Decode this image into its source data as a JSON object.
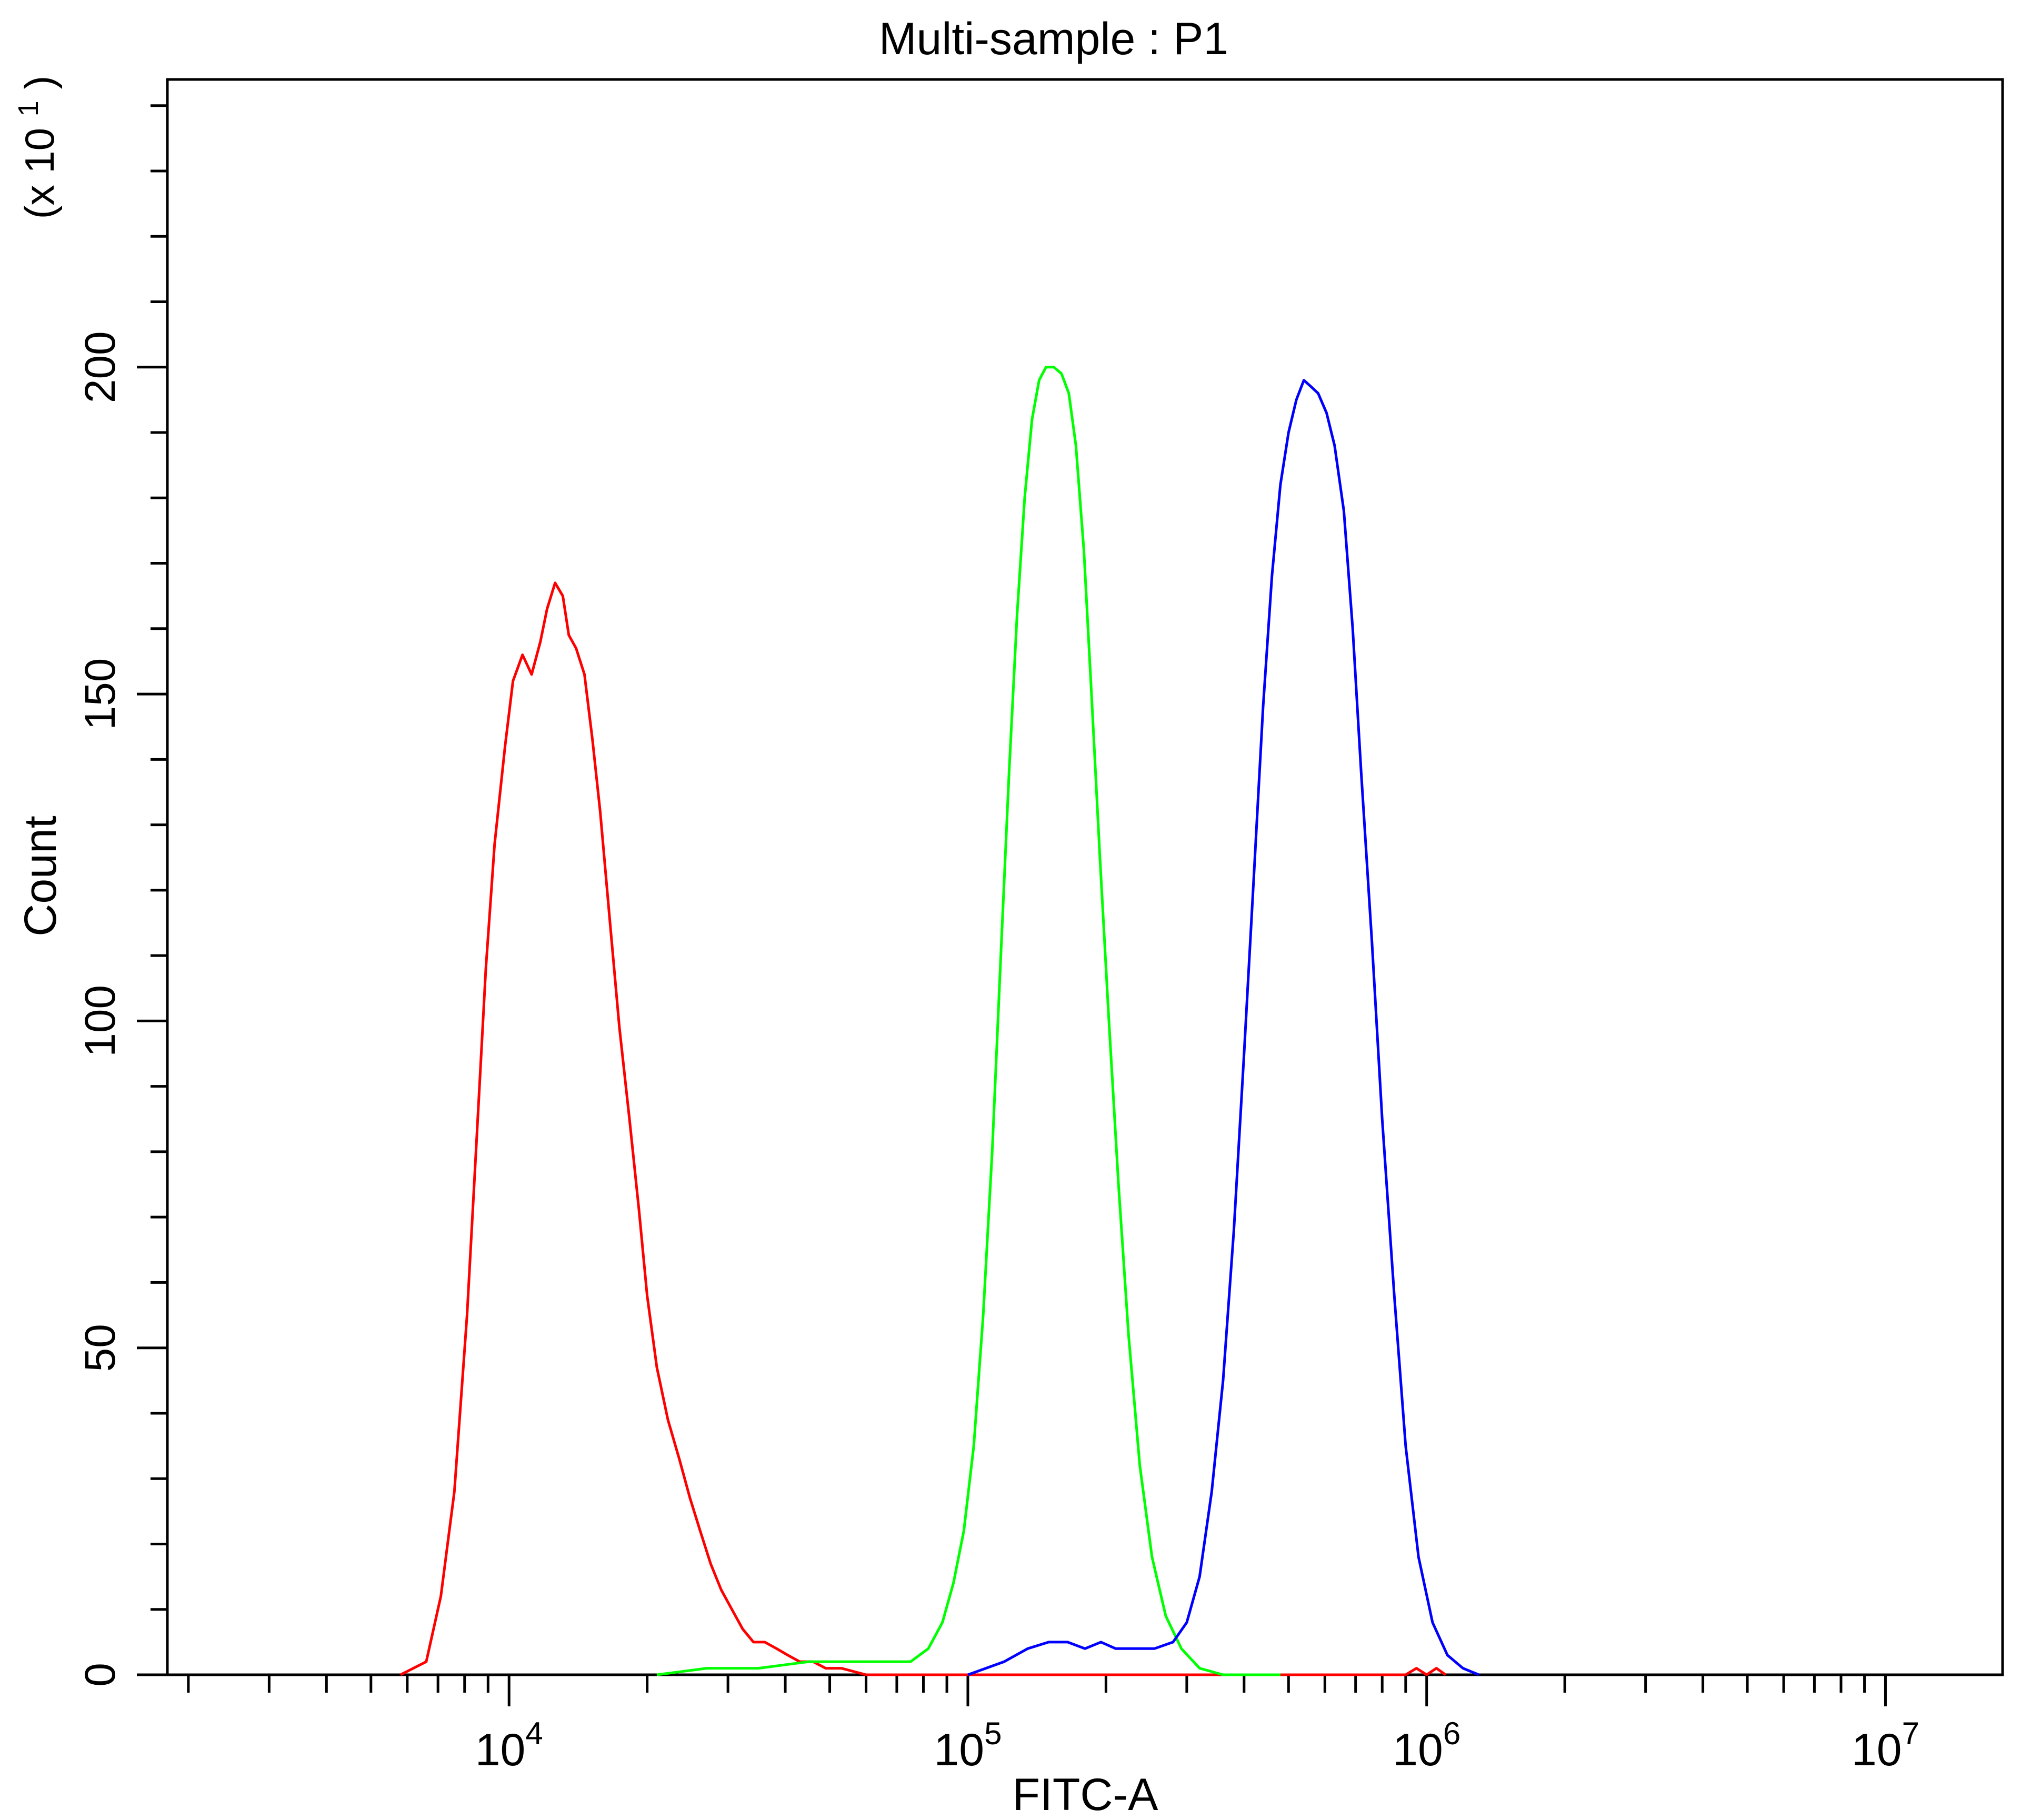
{
  "chart_data": {
    "type": "line",
    "title": "Multi-sample : P1",
    "xlabel": "FITC-A",
    "ylabel": "Count",
    "y_multiplier": "(x 10",
    "y_multiplier_exp": "1",
    "y_multiplier_close": ")",
    "x_scale": "log",
    "xlim": [
      1800,
      18000000
    ],
    "ylim": [
      0,
      244
    ],
    "x_ticks": [
      {
        "value": 10000,
        "base": "10",
        "exp": "4"
      },
      {
        "value": 100000,
        "base": "10",
        "exp": "5"
      },
      {
        "value": 1000000,
        "base": "10",
        "exp": "6"
      },
      {
        "value": 10000000,
        "base": "10",
        "exp": "7"
      }
    ],
    "y_ticks": [
      0,
      50,
      100,
      150,
      200
    ],
    "grid": false,
    "series": [
      {
        "color": "#ff0000",
        "points": [
          [
            5800,
            0
          ],
          [
            6600,
            2
          ],
          [
            7100,
            12
          ],
          [
            7600,
            28
          ],
          [
            8100,
            55
          ],
          [
            8500,
            82
          ],
          [
            8900,
            108
          ],
          [
            9300,
            127
          ],
          [
            9800,
            142
          ],
          [
            10200,
            152
          ],
          [
            10700,
            156
          ],
          [
            11200,
            153
          ],
          [
            11700,
            158
          ],
          [
            12100,
            163
          ],
          [
            12600,
            167
          ],
          [
            13100,
            165
          ],
          [
            13500,
            159
          ],
          [
            14000,
            157
          ],
          [
            14600,
            153
          ],
          [
            15200,
            143
          ],
          [
            15800,
            132
          ],
          [
            16600,
            115
          ],
          [
            17400,
            99
          ],
          [
            18300,
            85
          ],
          [
            19200,
            71
          ],
          [
            20000,
            58
          ],
          [
            21000,
            47
          ],
          [
            22200,
            39
          ],
          [
            23500,
            33
          ],
          [
            24800,
            27
          ],
          [
            26100,
            22
          ],
          [
            27500,
            17
          ],
          [
            29000,
            13
          ],
          [
            30600,
            10
          ],
          [
            32300,
            7
          ],
          [
            34100,
            5
          ],
          [
            36100,
            5
          ],
          [
            38300,
            4
          ],
          [
            40500,
            3
          ],
          [
            43000,
            2
          ],
          [
            46000,
            2
          ],
          [
            49000,
            1
          ],
          [
            53000,
            1
          ],
          [
            60000,
            0
          ],
          [
            80000,
            0
          ],
          [
            900000,
            0
          ],
          [
            950000,
            1
          ],
          [
            1000000,
            0
          ],
          [
            1050000,
            1
          ],
          [
            1100000,
            0
          ]
        ]
      },
      {
        "color": "#00ff00",
        "points": [
          [
            21000,
            0
          ],
          [
            27000,
            1
          ],
          [
            35000,
            1
          ],
          [
            45000,
            2
          ],
          [
            55000,
            2
          ],
          [
            65000,
            2
          ],
          [
            75000,
            2
          ],
          [
            82000,
            4
          ],
          [
            88000,
            8
          ],
          [
            93000,
            14
          ],
          [
            98000,
            22
          ],
          [
            103000,
            35
          ],
          [
            108000,
            55
          ],
          [
            113000,
            80
          ],
          [
            118000,
            110
          ],
          [
            123000,
            138
          ],
          [
            128000,
            162
          ],
          [
            133000,
            180
          ],
          [
            138000,
            192
          ],
          [
            143000,
            198
          ],
          [
            148000,
            200
          ],
          [
            154000,
            200
          ],
          [
            160000,
            199
          ],
          [
            166000,
            196
          ],
          [
            172000,
            188
          ],
          [
            179000,
            172
          ],
          [
            186000,
            150
          ],
          [
            194000,
            125
          ],
          [
            203000,
            100
          ],
          [
            213000,
            75
          ],
          [
            224000,
            52
          ],
          [
            237000,
            32
          ],
          [
            252000,
            18
          ],
          [
            270000,
            9
          ],
          [
            292000,
            4
          ],
          [
            320000,
            1
          ],
          [
            360000,
            0
          ],
          [
            480000,
            0
          ]
        ]
      },
      {
        "color": "#0000ff",
        "points": [
          [
            100000,
            0
          ],
          [
            120000,
            2
          ],
          [
            135000,
            4
          ],
          [
            150000,
            5
          ],
          [
            165000,
            5
          ],
          [
            180000,
            4
          ],
          [
            195000,
            5
          ],
          [
            210000,
            4
          ],
          [
            230000,
            4
          ],
          [
            255000,
            4
          ],
          [
            280000,
            5
          ],
          [
            300000,
            8
          ],
          [
            320000,
            15
          ],
          [
            340000,
            28
          ],
          [
            360000,
            45
          ],
          [
            380000,
            68
          ],
          [
            400000,
            95
          ],
          [
            420000,
            122
          ],
          [
            440000,
            148
          ],
          [
            460000,
            168
          ],
          [
            480000,
            182
          ],
          [
            500000,
            190
          ],
          [
            520000,
            195
          ],
          [
            540000,
            198
          ],
          [
            560000,
            197
          ],
          [
            580000,
            196
          ],
          [
            605000,
            193
          ],
          [
            630000,
            188
          ],
          [
            660000,
            178
          ],
          [
            690000,
            160
          ],
          [
            720000,
            138
          ],
          [
            760000,
            112
          ],
          [
            800000,
            85
          ],
          [
            850000,
            58
          ],
          [
            900000,
            35
          ],
          [
            960000,
            18
          ],
          [
            1030000,
            8
          ],
          [
            1110000,
            3
          ],
          [
            1200000,
            1
          ],
          [
            1300000,
            0
          ]
        ]
      }
    ]
  }
}
